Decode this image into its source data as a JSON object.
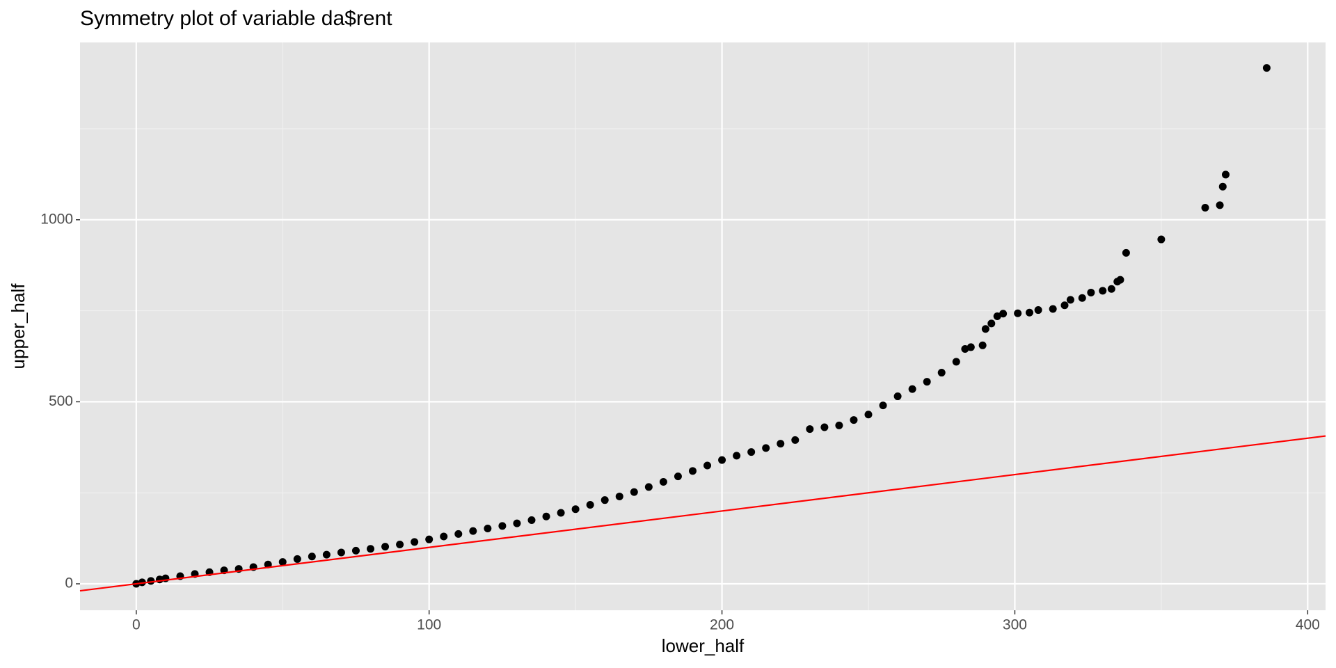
{
  "chart_data": {
    "type": "scatter",
    "title": "Symmetry plot of variable da$rent",
    "x_label": "lower_half",
    "y_label": "upper_half",
    "xlim": [
      -19.2,
      406.1
    ],
    "ylim": [
      -72.6,
      1487
    ],
    "xticks": [
      0,
      100,
      200,
      300,
      400
    ],
    "yticks": [
      0,
      500,
      1000
    ],
    "xminor": [
      50,
      150,
      250,
      350
    ],
    "yminor": [
      250,
      750,
      1250
    ],
    "grid": true,
    "reference_line": {
      "slope": 1,
      "intercept": 0,
      "color": "#ff0000"
    },
    "series": [
      {
        "color": "#000000",
        "x": [
          0,
          2,
          5,
          8,
          10,
          15,
          20,
          25,
          30,
          35,
          40,
          45,
          50,
          55,
          60,
          65,
          70,
          75,
          80,
          85,
          90,
          95,
          100,
          105,
          110,
          115,
          120,
          125,
          130,
          135,
          140,
          145,
          150,
          155,
          160,
          165,
          170,
          175,
          180,
          185,
          190,
          195,
          200,
          205,
          210,
          215,
          220,
          225,
          230,
          235,
          240,
          245,
          250,
          255,
          260,
          265,
          270,
          275,
          280,
          283,
          285,
          289,
          290,
          292,
          294,
          296,
          301,
          305,
          308,
          313,
          317,
          319,
          323,
          326,
          330,
          333,
          335,
          336,
          338,
          350,
          365,
          370,
          371,
          372,
          386
        ],
        "values": [
          0,
          4,
          8,
          12,
          15,
          21,
          27,
          32,
          37,
          41,
          46,
          53,
          60,
          68,
          75,
          80,
          86,
          91,
          96,
          102,
          108,
          115,
          122,
          130,
          137,
          145,
          152,
          159,
          166,
          175,
          185,
          195,
          205,
          217,
          230,
          240,
          252,
          266,
          280,
          295,
          310,
          325,
          340,
          352,
          362,
          373,
          385,
          395,
          425,
          430,
          435,
          450,
          465,
          490,
          515,
          535,
          555,
          580,
          610,
          645,
          650,
          655,
          700,
          715,
          735,
          742,
          743,
          745,
          752,
          755,
          765,
          780,
          785,
          800,
          805,
          810,
          830,
          835,
          909,
          946,
          1033,
          1040,
          1091,
          1124,
          1417
        ]
      }
    ]
  }
}
